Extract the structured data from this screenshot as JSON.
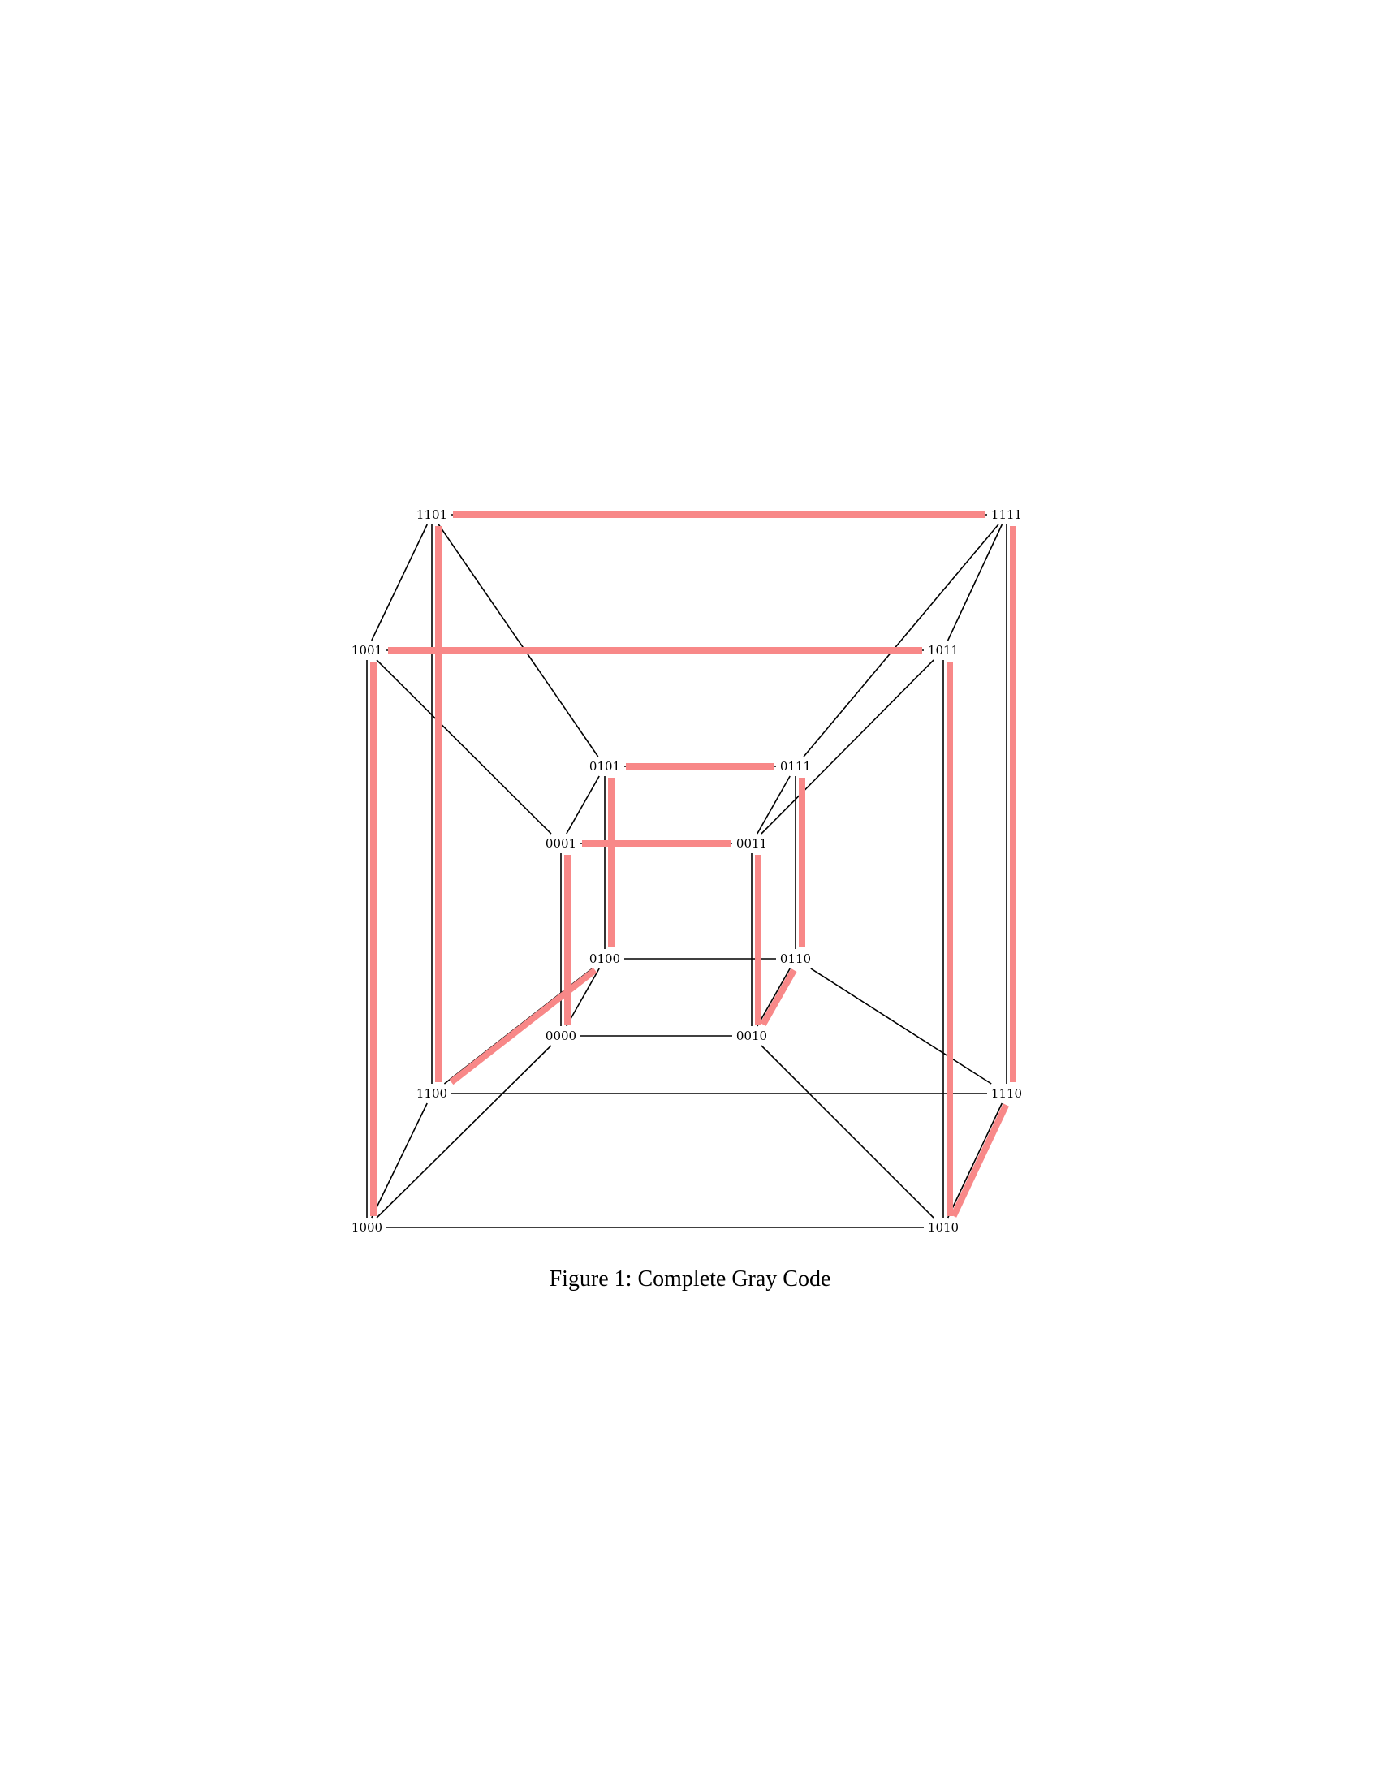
{
  "figure": {
    "caption": "Figure 1: Complete Gray Code",
    "highlight_color": "#f88888",
    "edge_color": "#000000"
  },
  "nodes": [
    "0000",
    "0001",
    "0010",
    "0011",
    "0100",
    "0101",
    "0110",
    "0111",
    "1000",
    "1001",
    "1010",
    "1011",
    "1100",
    "1101",
    "1110",
    "1111"
  ],
  "gray_code_path": [
    "0000",
    "0001",
    "0011",
    "0010",
    "0110",
    "0111",
    "0101",
    "0100",
    "1100",
    "1101",
    "1111",
    "1110",
    "1010",
    "1011",
    "1001",
    "1000"
  ]
}
